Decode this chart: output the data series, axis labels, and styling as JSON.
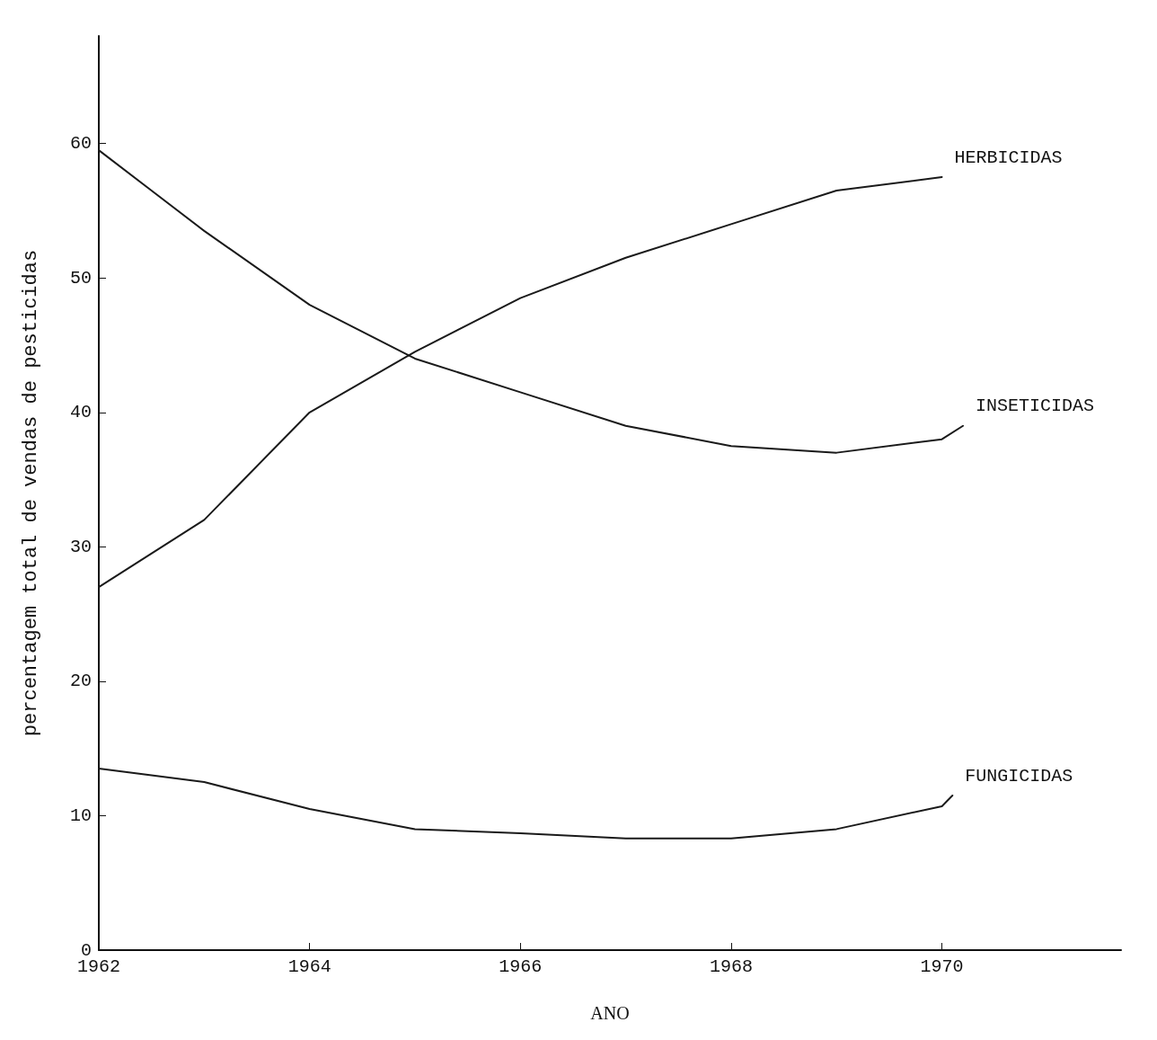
{
  "chart_data": {
    "type": "line",
    "xlabel": "ANO",
    "ylabel": "percentagem total de vendas de pesticidas",
    "xlim": [
      1962,
      1971.7
    ],
    "xticks": [
      1962,
      1964,
      1966,
      1968,
      1970
    ],
    "ylim": [
      0,
      68
    ],
    "yticks": [
      0,
      10,
      20,
      30,
      40,
      50,
      60
    ],
    "grid": false,
    "legend": false,
    "marker": "none",
    "line_style": "solid",
    "series": [
      {
        "name": "HERBICIDAS",
        "color": "#1a1a1a",
        "x": [
          1962,
          1963,
          1964,
          1965,
          1966,
          1967,
          1968,
          1969,
          1970
        ],
        "values": [
          27,
          32,
          40,
          44.5,
          48.5,
          51.5,
          54,
          56.5,
          57.5
        ]
      },
      {
        "name": "INSETICIDAS",
        "color": "#1a1a1a",
        "x": [
          1962,
          1962.5,
          1963,
          1964,
          1965,
          1966,
          1967,
          1968,
          1969,
          1970,
          1970.2
        ],
        "values": [
          59.5,
          56.5,
          53.5,
          48,
          44,
          41.5,
          39,
          37.5,
          37,
          38,
          39
        ]
      },
      {
        "name": "FUNGICIDAS",
        "color": "#1a1a1a",
        "x": [
          1962,
          1963,
          1964,
          1965,
          1966,
          1967,
          1968,
          1969,
          1970,
          1970.1
        ],
        "values": [
          13.5,
          12.5,
          10.5,
          9,
          8.7,
          8.3,
          8.3,
          9,
          10.7,
          11.5
        ]
      }
    ]
  }
}
